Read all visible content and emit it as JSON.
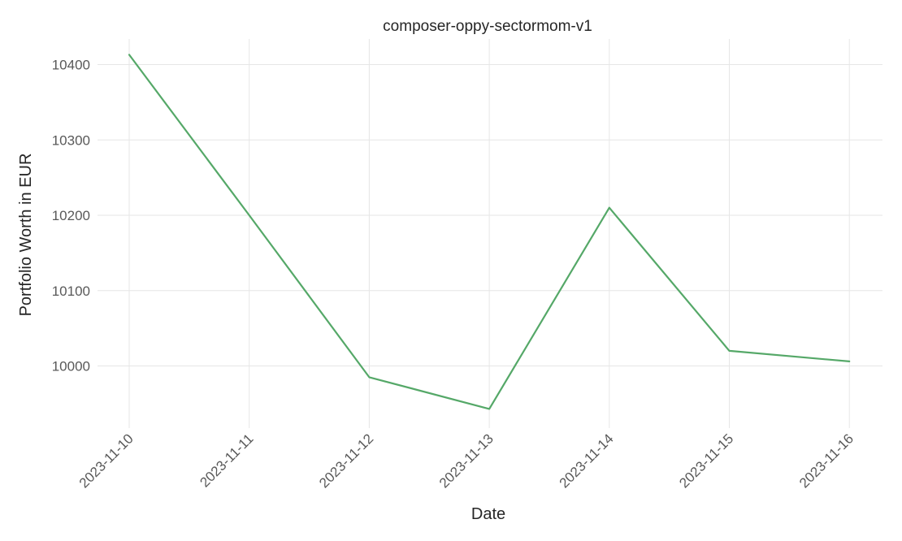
{
  "chart_data": {
    "type": "line",
    "title": "composer-oppy-sectormom-v1",
    "xlabel": "Date",
    "ylabel": "Portfolio Worth in EUR",
    "categories": [
      "2023-11-10",
      "2023-11-11",
      "2023-11-12",
      "2023-11-13",
      "2023-11-14",
      "2023-11-15",
      "2023-11-16"
    ],
    "series": [
      {
        "values": [
          10413,
          10200,
          9985,
          9943,
          10210,
          10020,
          10006
        ],
        "color": "#55a868"
      }
    ],
    "yticks": [
      10000,
      10100,
      10200,
      10300,
      10400
    ],
    "ylim": [
      9915,
      10435
    ],
    "grid": true,
    "legend": "none"
  }
}
